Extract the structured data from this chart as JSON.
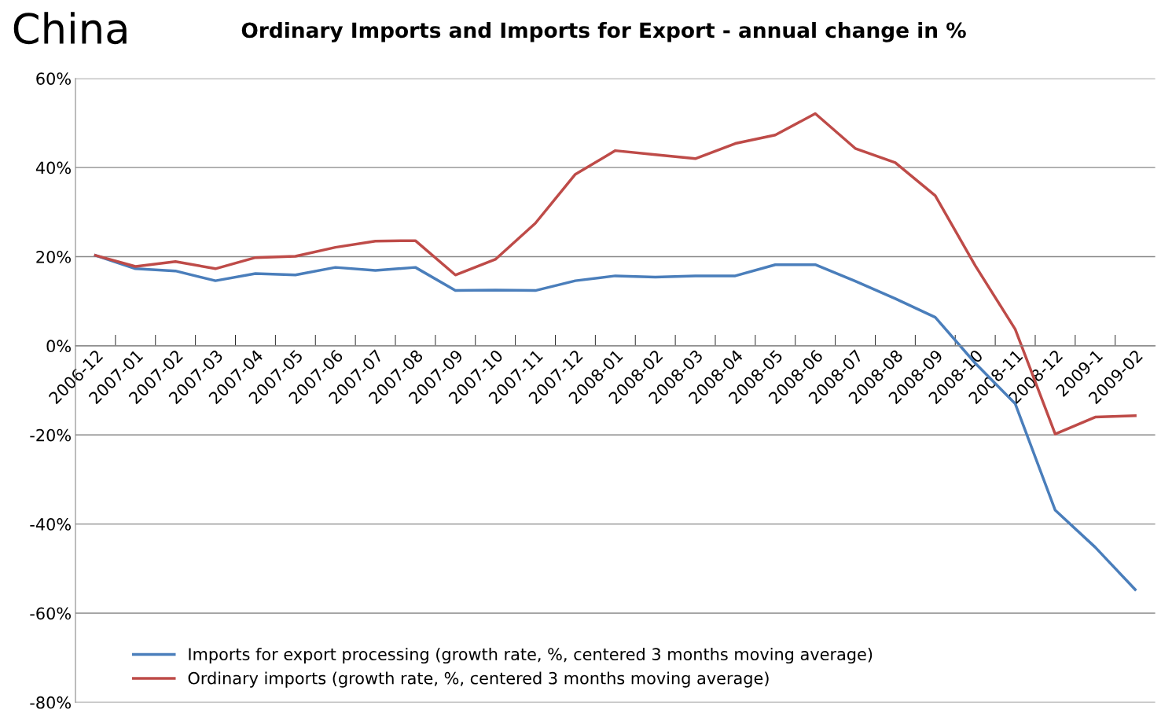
{
  "chart_data": {
    "type": "line",
    "title": "Ordinary Imports and Imports for Export - annual change in %",
    "annotations": [
      "China"
    ],
    "categories": [
      "2006-12",
      "2007-01",
      "2007-02",
      "2007-03",
      "2007-04",
      "2007-05",
      "2007-06",
      "2007-07",
      "2007-08",
      "2007-09",
      "2007-10",
      "2007-11",
      "2007-12",
      "2008-01",
      "2008-02",
      "2008-03",
      "2008-04",
      "2008-05",
      "2008-06",
      "2008-07",
      "2008-08",
      "2008-09",
      "2008-10",
      "2008-11",
      "2008-12",
      "2009-1",
      "2009-02"
    ],
    "series": [
      {
        "name": "Imports for export processing (growth rate, %, centered 3 months moving average)",
        "color": "#4a7ebb",
        "values": [
          20.3,
          17.3,
          16.8,
          14.6,
          16.2,
          15.9,
          17.6,
          16.9,
          17.6,
          12.4,
          12.5,
          12.4,
          14.6,
          15.7,
          15.4,
          15.7,
          15.7,
          18.2,
          18.2,
          14.5,
          10.6,
          6.4,
          -3.9,
          -13,
          -36.9,
          -45.2,
          -54.7
        ]
      },
      {
        "name": "Ordinary imports (growth rate, %, centered 3 months moving average)",
        "color": "#be4b48",
        "values": [
          20.3,
          17.8,
          18.9,
          17.3,
          19.8,
          20.1,
          22.1,
          23.5,
          23.6,
          15.9,
          19.4,
          27.5,
          38.5,
          43.8,
          42.9,
          42.0,
          45.4,
          47.3,
          52.1,
          44.3,
          41.1,
          33.7,
          18.0,
          3.7,
          -19.8,
          -16,
          -15.7
        ]
      }
    ],
    "ylim": [
      -80,
      60
    ],
    "yticks": [
      {
        "value": -80,
        "label": "-80%"
      },
      {
        "value": -60,
        "label": "-60%"
      },
      {
        "value": -40,
        "label": "-40%"
      },
      {
        "value": -20,
        "label": "-20%"
      },
      {
        "value": 0,
        "label": "0%"
      },
      {
        "value": 20,
        "label": "20%"
      },
      {
        "value": 40,
        "label": "40%"
      },
      {
        "value": 60,
        "label": "60%"
      }
    ],
    "grid": "y",
    "legend": "bottom left",
    "marker": "none",
    "line_style": "solid"
  }
}
